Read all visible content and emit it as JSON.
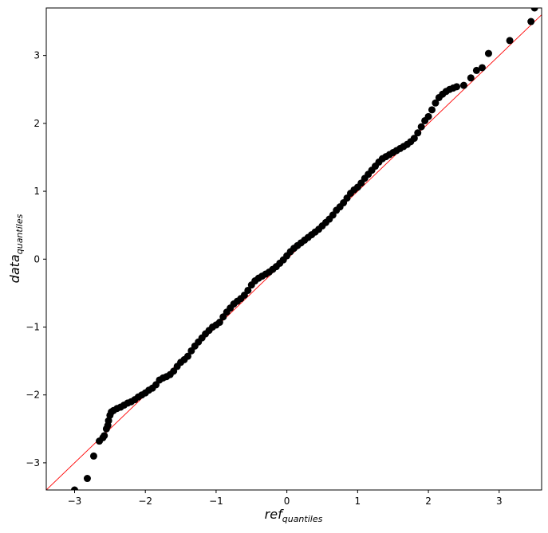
{
  "chart_data": {
    "type": "scatter",
    "title": "",
    "xlabel": "ref",
    "xlabel_subscript": "quantiles",
    "ylabel": "data",
    "ylabel_subscript": "quantiles",
    "xlim": [
      -3.4,
      3.6
    ],
    "ylim": [
      -3.4,
      3.7
    ],
    "xticks": [
      -3,
      -2,
      -1,
      0,
      1,
      2,
      3
    ],
    "yticks": [
      -3,
      -2,
      -1,
      0,
      1,
      2,
      3
    ],
    "xtick_labels": [
      "−3",
      "−2",
      "−1",
      "0",
      "1",
      "2",
      "3"
    ],
    "ytick_labels": [
      "−3",
      "−2",
      "−1",
      "0",
      "1",
      "2",
      "3"
    ],
    "grid": false,
    "reference_line": {
      "slope": 1,
      "intercept": 0,
      "color": "#ff0000"
    },
    "point_color": "#000000",
    "series": [
      {
        "x": [
          -3.0,
          -2.82,
          -2.73,
          -2.65,
          -2.6,
          -2.58,
          -2.55,
          -2.53,
          -2.52,
          -2.5,
          -2.48,
          -2.45,
          -2.4,
          -2.35,
          -2.3,
          -2.25,
          -2.2,
          -2.15,
          -2.1,
          -2.05,
          -2.0,
          -1.95,
          -1.9,
          -1.85,
          -1.8,
          -1.75,
          -1.7,
          -1.65,
          -1.6,
          -1.55,
          -1.5,
          -1.45,
          -1.4,
          -1.35,
          -1.3,
          -1.25,
          -1.2,
          -1.15,
          -1.1,
          -1.05,
          -1.0,
          -0.95,
          -0.9,
          -0.85,
          -0.8,
          -0.75,
          -0.7,
          -0.65,
          -0.6,
          -0.55,
          -0.5,
          -0.45,
          -0.4,
          -0.35,
          -0.3,
          -0.25,
          -0.2,
          -0.15,
          -0.1,
          -0.05,
          0.0,
          0.05,
          0.1,
          0.15,
          0.2,
          0.25,
          0.3,
          0.35,
          0.4,
          0.45,
          0.5,
          0.55,
          0.6,
          0.65,
          0.7,
          0.75,
          0.8,
          0.85,
          0.9,
          0.95,
          1.0,
          1.05,
          1.1,
          1.15,
          1.2,
          1.25,
          1.3,
          1.35,
          1.4,
          1.45,
          1.5,
          1.55,
          1.6,
          1.65,
          1.7,
          1.75,
          1.8,
          1.85,
          1.9,
          1.95,
          2.0,
          2.05,
          2.1,
          2.15,
          2.2,
          2.25,
          2.3,
          2.35,
          2.4,
          2.5,
          2.6,
          2.68,
          2.76,
          2.85,
          3.15,
          3.45,
          3.5
        ],
        "y": [
          -3.4,
          -3.23,
          -2.9,
          -2.68,
          -2.63,
          -2.6,
          -2.5,
          -2.45,
          -2.38,
          -2.3,
          -2.25,
          -2.23,
          -2.2,
          -2.18,
          -2.15,
          -2.12,
          -2.1,
          -2.07,
          -2.03,
          -2.0,
          -1.97,
          -1.93,
          -1.9,
          -1.85,
          -1.78,
          -1.75,
          -1.73,
          -1.7,
          -1.65,
          -1.58,
          -1.52,
          -1.48,
          -1.43,
          -1.35,
          -1.28,
          -1.22,
          -1.16,
          -1.1,
          -1.05,
          -1.0,
          -0.97,
          -0.93,
          -0.85,
          -0.78,
          -0.72,
          -0.66,
          -0.62,
          -0.58,
          -0.53,
          -0.46,
          -0.38,
          -0.32,
          -0.28,
          -0.25,
          -0.22,
          -0.19,
          -0.15,
          -0.11,
          -0.06,
          -0.01,
          0.05,
          0.11,
          0.16,
          0.2,
          0.24,
          0.28,
          0.32,
          0.36,
          0.4,
          0.44,
          0.49,
          0.54,
          0.59,
          0.65,
          0.72,
          0.77,
          0.83,
          0.9,
          0.97,
          1.02,
          1.06,
          1.12,
          1.19,
          1.25,
          1.31,
          1.37,
          1.43,
          1.48,
          1.51,
          1.54,
          1.57,
          1.6,
          1.63,
          1.66,
          1.69,
          1.73,
          1.78,
          1.86,
          1.95,
          2.04,
          2.1,
          2.2,
          2.3,
          2.38,
          2.43,
          2.47,
          2.5,
          2.52,
          2.54,
          2.56,
          2.67,
          2.78,
          2.82,
          3.03,
          3.22,
          3.5,
          3.7
        ]
      }
    ]
  }
}
